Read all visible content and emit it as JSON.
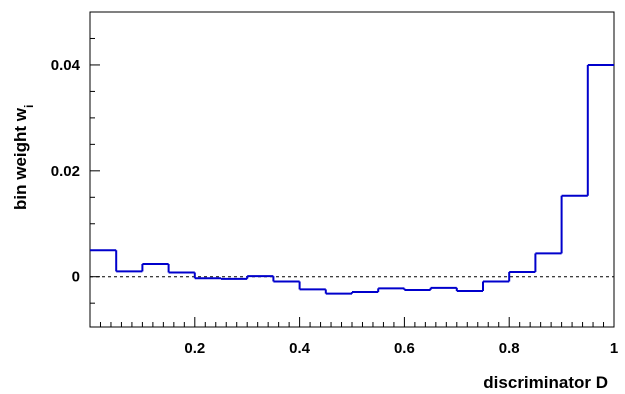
{
  "chart_data": {
    "type": "line",
    "style": "histogram-step",
    "xlabel": "discriminator D",
    "ylabel": "bin weight w",
    "ylabel_subscript": "i",
    "xlim": [
      0,
      1
    ],
    "ylim": [
      -0.0095,
      0.05
    ],
    "xticks": [
      0.2,
      0.4,
      0.6,
      0.8,
      1.0
    ],
    "xtick_labels": [
      "0.2",
      "0.4",
      "0.6",
      "0.8",
      "1"
    ],
    "yticks": [
      0,
      0.02,
      0.04
    ],
    "ytick_labels": [
      "0",
      "0.02",
      "0.04"
    ],
    "reference_line": {
      "y": 0,
      "style": "dashed"
    },
    "grid": false,
    "line_color": "#0000cc",
    "bin_edges": [
      0,
      0.05,
      0.1,
      0.15,
      0.2,
      0.25,
      0.3,
      0.35,
      0.4,
      0.45,
      0.5,
      0.55,
      0.6,
      0.65,
      0.7,
      0.75,
      0.8,
      0.85,
      0.9,
      0.95,
      1.0
    ],
    "values": [
      0.005,
      0.001,
      0.0024,
      0.0008,
      -0.0003,
      -0.0004,
      0.0001,
      -0.0009,
      -0.0024,
      -0.0032,
      -0.0029,
      -0.0022,
      -0.0025,
      -0.0021,
      -0.0027,
      -0.0009,
      0.0009,
      0.0044,
      0.0153,
      0.04
    ]
  }
}
